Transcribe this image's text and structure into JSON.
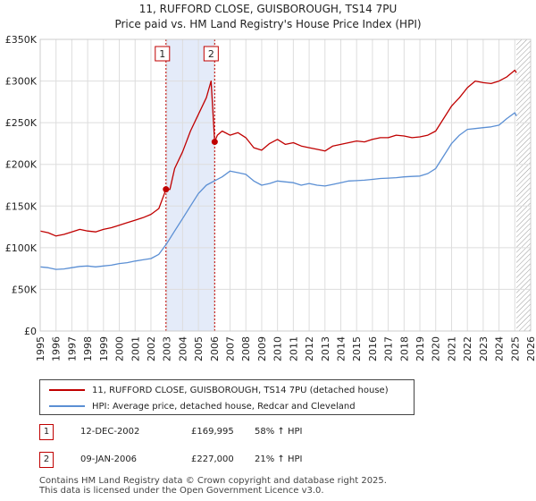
{
  "chart_data": {
    "type": "line",
    "title": "11, RUFFORD CLOSE, GUISBOROUGH, TS14 7PU",
    "subtitle": "Price paid vs. HM Land Registry's House Price Index (HPI)",
    "xlim": [
      1995,
      2026
    ],
    "ylim": [
      0,
      350000
    ],
    "x_ticks": [
      "1995",
      "1996",
      "1997",
      "1998",
      "1999",
      "2000",
      "2001",
      "2002",
      "2003",
      "2004",
      "2005",
      "2006",
      "2007",
      "2008",
      "2009",
      "2010",
      "2011",
      "2012",
      "2013",
      "2014",
      "2015",
      "2016",
      "2017",
      "2018",
      "2019",
      "2020",
      "2021",
      "2022",
      "2023",
      "2024",
      "2025",
      "2026"
    ],
    "y_ticks": [
      {
        "value": 0,
        "label": "£0"
      },
      {
        "value": 50000,
        "label": "£50K"
      },
      {
        "value": 100000,
        "label": "£100K"
      },
      {
        "value": 150000,
        "label": "£150K"
      },
      {
        "value": 200000,
        "label": "£200K"
      },
      {
        "value": 250000,
        "label": "£250K"
      },
      {
        "value": 300000,
        "label": "£300K"
      },
      {
        "value": 350000,
        "label": "£350K"
      }
    ],
    "grid": true,
    "shaded_range": [
      2002.95,
      2006.03
    ],
    "future_hatch_from": 2025.1,
    "series": [
      {
        "name": "11, RUFFORD CLOSE, GUISBOROUGH, TS14 7PU (detached house)",
        "color": "#c00000",
        "x": [
          1995,
          1995.5,
          1996,
          1996.5,
          1997,
          1997.5,
          1998,
          1998.5,
          1999,
          1999.5,
          2000,
          2000.5,
          2001,
          2001.5,
          2002,
          2002.5,
          2002.95,
          2003.2,
          2003.5,
          2004,
          2004.5,
          2005,
          2005.5,
          2005.8,
          2006.03,
          2006.2,
          2006.5,
          2007,
          2007.5,
          2008,
          2008.5,
          2009,
          2009.5,
          2010,
          2010.5,
          2011,
          2011.5,
          2012,
          2012.5,
          2013,
          2013.5,
          2014,
          2014.5,
          2015,
          2015.5,
          2016,
          2016.5,
          2017,
          2017.5,
          2018,
          2018.5,
          2019,
          2019.5,
          2020,
          2020.5,
          2021,
          2021.5,
          2022,
          2022.5,
          2023,
          2023.5,
          2024,
          2024.5,
          2025,
          2025.1
        ],
        "y": [
          120000,
          118000,
          114000,
          116000,
          119000,
          122000,
          120000,
          119000,
          122000,
          124000,
          127000,
          130000,
          133000,
          136000,
          140000,
          147000,
          169995,
          170000,
          195000,
          215000,
          240000,
          260000,
          280000,
          300000,
          227000,
          235000,
          240000,
          235000,
          238000,
          232000,
          220000,
          217000,
          225000,
          230000,
          224000,
          226000,
          222000,
          220000,
          218000,
          216000,
          222000,
          224000,
          226000,
          228000,
          227000,
          230000,
          232000,
          232000,
          235000,
          234000,
          232000,
          233000,
          235000,
          240000,
          255000,
          270000,
          280000,
          292000,
          300000,
          298000,
          297000,
          300000,
          305000,
          313000,
          310000
        ]
      },
      {
        "name": "HPI: Average price, detached house, Redcar and Cleveland",
        "color": "#5b8fd4",
        "x": [
          1995,
          1995.5,
          1996,
          1996.5,
          1997,
          1997.5,
          1998,
          1998.5,
          1999,
          1999.5,
          2000,
          2000.5,
          2001,
          2001.5,
          2002,
          2002.5,
          2003,
          2003.5,
          2004,
          2004.5,
          2005,
          2005.5,
          2006,
          2006.5,
          2007,
          2007.5,
          2008,
          2008.5,
          2009,
          2009.5,
          2010,
          2010.5,
          2011,
          2011.5,
          2012,
          2012.5,
          2013,
          2013.5,
          2014,
          2014.5,
          2015,
          2015.5,
          2016,
          2016.5,
          2017,
          2017.5,
          2018,
          2018.5,
          2019,
          2019.5,
          2020,
          2020.5,
          2021,
          2021.5,
          2022,
          2022.5,
          2023,
          2023.5,
          2024,
          2024.5,
          2025,
          2025.1
        ],
        "y": [
          77000,
          76000,
          74000,
          74500,
          76000,
          77500,
          78000,
          77000,
          78000,
          79000,
          81000,
          82000,
          84000,
          85500,
          87000,
          92000,
          105000,
          120000,
          135000,
          150000,
          165000,
          175000,
          180000,
          185000,
          192000,
          190000,
          188000,
          180000,
          175000,
          177000,
          180000,
          179000,
          178000,
          175000,
          177000,
          175000,
          174000,
          176000,
          178000,
          180000,
          180500,
          181000,
          182000,
          183000,
          183500,
          184000,
          185000,
          185500,
          186000,
          189000,
          195000,
          210000,
          225000,
          235000,
          242000,
          243000,
          244000,
          245000,
          247000,
          255000,
          262000,
          258000
        ]
      }
    ],
    "markers": [
      {
        "label": "1",
        "x": 2002.95,
        "y": 169995
      },
      {
        "label": "2",
        "x": 2006.03,
        "y": 227000
      }
    ]
  },
  "legend": [
    {
      "label": "11, RUFFORD CLOSE, GUISBOROUGH, TS14 7PU (detached house)",
      "color": "#c00000"
    },
    {
      "label": "HPI: Average price, detached house, Redcar and Cleveland",
      "color": "#5b8fd4"
    }
  ],
  "transactions": [
    {
      "num": "1",
      "date": "12-DEC-2002",
      "price": "£169,995",
      "hpi": "58% ↑ HPI"
    },
    {
      "num": "2",
      "date": "09-JAN-2006",
      "price": "£227,000",
      "hpi": "21% ↑ HPI"
    }
  ],
  "footer": [
    "Contains HM Land Registry data © Crown copyright and database right 2025.",
    "This data is licensed under the Open Government Licence v3.0."
  ]
}
